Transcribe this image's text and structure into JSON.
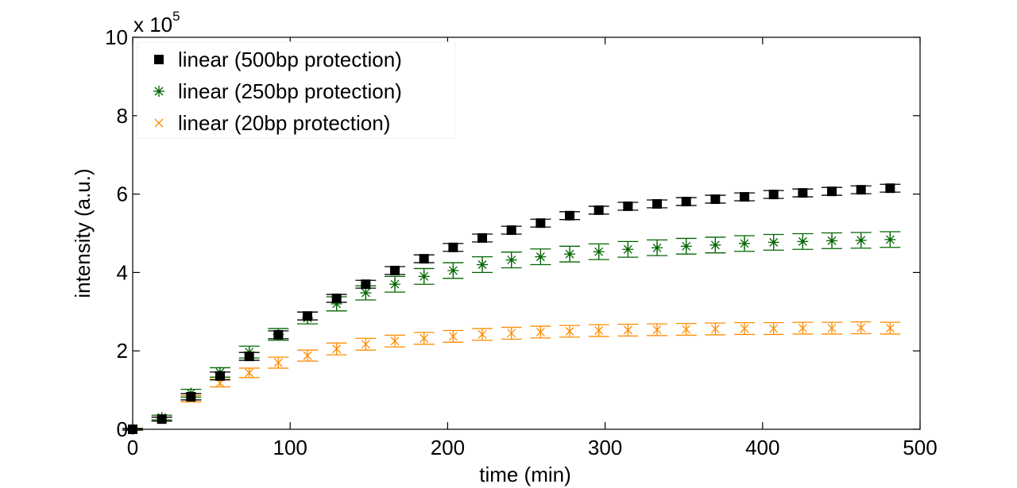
{
  "chart_data": {
    "type": "scatter",
    "title": "",
    "xlabel": "time (min)",
    "ylabel": "intensity (a.u.)",
    "y_multiplier_label": "x 10",
    "y_multiplier_exponent": "5",
    "xlim": [
      0,
      500
    ],
    "ylim": [
      0,
      10
    ],
    "xticks": [
      "0",
      "100",
      "200",
      "300",
      "400",
      "500"
    ],
    "xtick_values": [
      0,
      100,
      200,
      300,
      400,
      500
    ],
    "yticks": [
      "0",
      "2",
      "4",
      "6",
      "8",
      "10"
    ],
    "ytick_values": [
      0,
      2,
      4,
      6,
      8,
      10
    ],
    "grid": false,
    "legend_position": "top-left",
    "x": [
      0,
      18.5,
      37,
      55.5,
      74,
      92.5,
      111,
      129.5,
      148,
      166.5,
      185,
      203.5,
      222,
      240.5,
      259,
      277.5,
      296,
      314.5,
      333,
      351.5,
      370,
      388.5,
      407,
      425.5,
      444,
      462.5,
      481
    ],
    "series": [
      {
        "name": "linear (500bp protection)",
        "marker": "square",
        "color": "#000000",
        "values": [
          0,
          0.26,
          0.83,
          1.36,
          1.86,
          2.41,
          2.89,
          3.34,
          3.7,
          4.05,
          4.35,
          4.64,
          4.88,
          5.08,
          5.26,
          5.45,
          5.59,
          5.69,
          5.75,
          5.81,
          5.87,
          5.93,
          5.99,
          6.03,
          6.07,
          6.11,
          6.15
        ],
        "errors": [
          0.02,
          0.05,
          0.08,
          0.1,
          0.1,
          0.1,
          0.1,
          0.1,
          0.1,
          0.1,
          0.1,
          0.1,
          0.1,
          0.1,
          0.1,
          0.1,
          0.1,
          0.1,
          0.1,
          0.1,
          0.1,
          0.1,
          0.1,
          0.1,
          0.1,
          0.1,
          0.1
        ]
      },
      {
        "name": "linear (250bp protection)",
        "marker": "asterisk",
        "color": "#006400",
        "values": [
          0,
          0.3,
          0.92,
          1.45,
          1.97,
          2.42,
          2.84,
          3.2,
          3.48,
          3.7,
          3.9,
          4.05,
          4.2,
          4.32,
          4.4,
          4.47,
          4.53,
          4.59,
          4.63,
          4.67,
          4.7,
          4.74,
          4.77,
          4.79,
          4.81,
          4.82,
          4.84
        ],
        "errors": [
          0.02,
          0.06,
          0.1,
          0.12,
          0.15,
          0.15,
          0.15,
          0.18,
          0.18,
          0.2,
          0.2,
          0.2,
          0.2,
          0.2,
          0.2,
          0.2,
          0.2,
          0.2,
          0.2,
          0.2,
          0.2,
          0.2,
          0.2,
          0.2,
          0.2,
          0.2,
          0.2
        ]
      },
      {
        "name": "linear (20bp protection)",
        "marker": "x",
        "color": "#FF8C00",
        "values": [
          0,
          0.26,
          0.78,
          1.18,
          1.44,
          1.7,
          1.88,
          2.05,
          2.17,
          2.25,
          2.32,
          2.37,
          2.42,
          2.45,
          2.48,
          2.5,
          2.52,
          2.53,
          2.54,
          2.55,
          2.56,
          2.57,
          2.57,
          2.58,
          2.58,
          2.59,
          2.58
        ],
        "errors": [
          0.02,
          0.05,
          0.08,
          0.1,
          0.12,
          0.14,
          0.14,
          0.15,
          0.15,
          0.15,
          0.15,
          0.15,
          0.15,
          0.15,
          0.15,
          0.15,
          0.15,
          0.15,
          0.15,
          0.15,
          0.15,
          0.15,
          0.15,
          0.15,
          0.15,
          0.15,
          0.15
        ]
      }
    ]
  }
}
